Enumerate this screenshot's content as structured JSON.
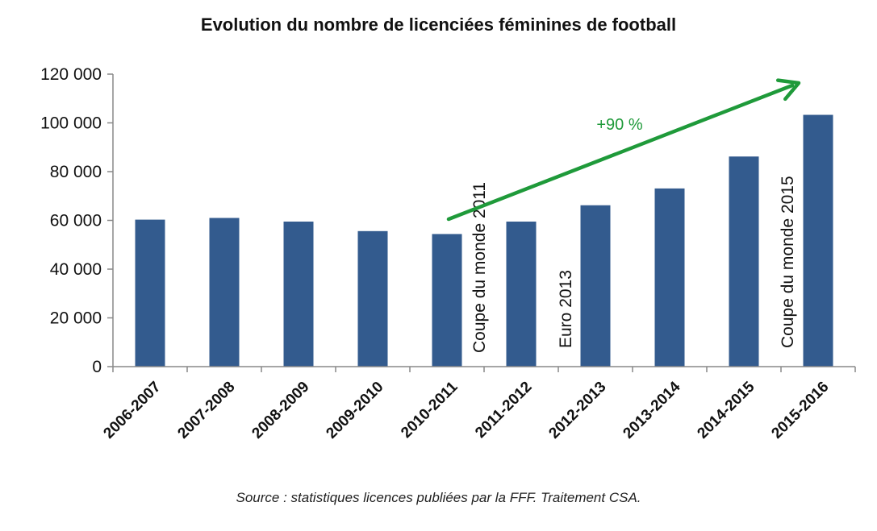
{
  "chart_data": {
    "type": "bar",
    "title": "Evolution du nombre de licenciées féminines de football",
    "source": "Source : statistiques licences publiées par la FFF. Traitement CSA.",
    "categories": [
      "2006-2007",
      "2007-2008",
      "2008-2009",
      "2009-2010",
      "2010-2011",
      "2011-2012",
      "2012-2013",
      "2013-2014",
      "2014-2015",
      "2015-2016"
    ],
    "values": [
      60300,
      61000,
      59500,
      55600,
      54400,
      59500,
      66200,
      73100,
      86200,
      103300
    ],
    "ylim": [
      0,
      120000
    ],
    "yticks": [
      0,
      20000,
      40000,
      60000,
      80000,
      100000,
      120000
    ],
    "ytick_labels": [
      "0",
      "20 000",
      "40 000",
      "60 000",
      "80 000",
      "100 000",
      "120 000"
    ],
    "xlabel": "",
    "ylabel": "",
    "grid": false,
    "bar_color": "#335b8e",
    "annotations": [
      {
        "text": "Coupe du monde 2011",
        "category": "2011-2012",
        "orientation": "vertical"
      },
      {
        "text": "Euro 2013",
        "category": "2012-2013",
        "orientation": "vertical"
      },
      {
        "text": "Coupe du monde 2015",
        "category": "2015-2016",
        "orientation": "vertical"
      }
    ],
    "growth_arrow": {
      "label": "+90 %",
      "from_category": "2010-2011",
      "to_category": "2015-2016",
      "color": "#1f9a3a"
    }
  }
}
